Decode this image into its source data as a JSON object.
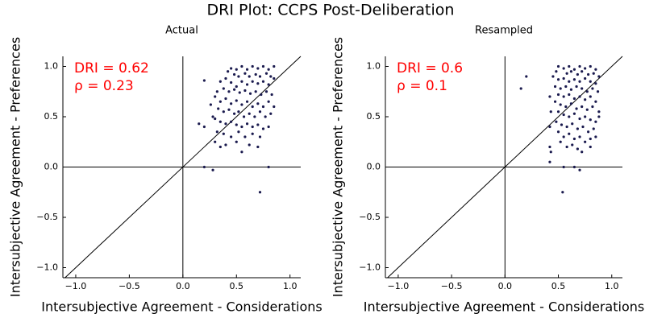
{
  "title": "DRI Plot: CCPS Post-Deliberation",
  "chart_data": [
    {
      "type": "scatter",
      "title": "Actual",
      "xlabel": "Intersubjective Agreement - Considerations",
      "ylabel": "Intersubjective Agreement - Preferences",
      "annotations": [
        "DRI = 0.62",
        "ρ = 0.23"
      ],
      "annotation_color": "#ff0000",
      "color": "#1a1a4e",
      "xlim": [
        -1.12,
        1.1
      ],
      "ylim": [
        -1.1,
        1.1
      ],
      "xticks": [
        {
          "value": -1,
          "label": "−1.0"
        },
        {
          "value": -0.5,
          "label": "−0.5"
        },
        {
          "value": 0,
          "label": "0.0"
        },
        0.5,
        {
          "value": 1,
          "label": "1.0"
        }
      ],
      "yticks": [
        {
          "value": -1,
          "label": "−1.0"
        },
        {
          "value": -0.5,
          "label": "−0.5"
        },
        {
          "value": 0,
          "label": "0.0"
        },
        0.5,
        {
          "value": 1,
          "label": "1.0"
        }
      ],
      "hlines": [
        0
      ],
      "vlines": [
        0
      ],
      "diagonal": true,
      "x": [
        0.45,
        0.5,
        0.55,
        0.6,
        0.65,
        0.7,
        0.75,
        0.8,
        0.85,
        0.42,
        0.48,
        0.52,
        0.58,
        0.62,
        0.68,
        0.72,
        0.78,
        0.82,
        0.85,
        0.4,
        0.35,
        0.45,
        0.55,
        0.6,
        0.65,
        0.7,
        0.75,
        0.8,
        0.5,
        0.38,
        0.43,
        0.48,
        0.53,
        0.58,
        0.63,
        0.68,
        0.73,
        0.78,
        0.83,
        0.3,
        0.35,
        0.4,
        0.45,
        0.5,
        0.55,
        0.6,
        0.65,
        0.7,
        0.75,
        0.8,
        0.85,
        0.33,
        0.38,
        0.43,
        0.48,
        0.52,
        0.57,
        0.62,
        0.67,
        0.72,
        0.77,
        0.82,
        0.3,
        0.35,
        0.4,
        0.45,
        0.5,
        0.55,
        0.6,
        0.65,
        0.7,
        0.75,
        0.8,
        0.32,
        0.38,
        0.45,
        0.52,
        0.58,
        0.65,
        0.72,
        0.3,
        0.4,
        0.5,
        0.62,
        0.7,
        0.55,
        0.35,
        0.28,
        0.32,
        0.26,
        0.2,
        0.15,
        0.2,
        0.2,
        0.28,
        0.8,
        0.72
      ],
      "y": [
        0.98,
        0.97,
        1.0,
        0.97,
        1.0,
        0.98,
        1.0,
        0.97,
        1.0,
        0.95,
        0.92,
        0.9,
        0.93,
        0.9,
        0.92,
        0.9,
        0.93,
        0.9,
        0.88,
        0.88,
        0.85,
        0.84,
        0.85,
        0.82,
        0.85,
        0.83,
        0.85,
        0.82,
        0.8,
        0.78,
        0.75,
        0.77,
        0.74,
        0.76,
        0.73,
        0.75,
        0.72,
        0.75,
        0.72,
        0.7,
        0.65,
        0.68,
        0.63,
        0.66,
        0.62,
        0.65,
        0.6,
        0.63,
        0.6,
        0.65,
        0.6,
        0.58,
        0.55,
        0.57,
        0.53,
        0.55,
        0.5,
        0.53,
        0.5,
        0.55,
        0.5,
        0.53,
        0.48,
        0.45,
        0.43,
        0.45,
        0.42,
        0.4,
        0.43,
        0.4,
        0.42,
        0.38,
        0.4,
        0.35,
        0.33,
        0.3,
        0.35,
        0.3,
        0.33,
        0.3,
        0.25,
        0.22,
        0.25,
        0.22,
        0.2,
        0.15,
        0.2,
        0.5,
        0.75,
        0.62,
        0.86,
        0.43,
        0.4,
        0.0,
        -0.03,
        0.0,
        -0.25
      ]
    },
    {
      "type": "scatter",
      "title": "Resampled",
      "xlabel": "Intersubjective Agreement - Considerations",
      "ylabel": "Intersubjective Agreement - Preferences",
      "annotations": [
        "DRI = 0.6",
        "ρ = 0.1"
      ],
      "annotation_color": "#ff0000",
      "color": "#1a1a4e",
      "xlim": [
        -1.12,
        1.1
      ],
      "ylim": [
        -1.1,
        1.1
      ],
      "xticks": [
        {
          "value": -1,
          "label": "−1.0"
        },
        {
          "value": -0.5,
          "label": "−0.5"
        },
        {
          "value": 0,
          "label": "0.0"
        },
        0.5,
        {
          "value": 1,
          "label": "1.0"
        }
      ],
      "yticks": [
        {
          "value": -1,
          "label": "−1.0"
        },
        {
          "value": -0.5,
          "label": "−0.5"
        },
        {
          "value": 0,
          "label": "0.0"
        },
        0.5,
        {
          "value": 1,
          "label": "1.0"
        }
      ],
      "hlines": [
        0
      ],
      "vlines": [
        0
      ],
      "diagonal": true,
      "x": [
        0.5,
        0.55,
        0.6,
        0.65,
        0.7,
        0.75,
        0.8,
        0.85,
        0.48,
        0.58,
        0.62,
        0.68,
        0.72,
        0.78,
        0.83,
        0.88,
        0.45,
        0.5,
        0.55,
        0.6,
        0.65,
        0.7,
        0.75,
        0.8,
        0.85,
        0.47,
        0.52,
        0.57,
        0.62,
        0.67,
        0.72,
        0.77,
        0.82,
        0.87,
        0.5,
        0.55,
        0.6,
        0.65,
        0.7,
        0.75,
        0.8,
        0.85,
        0.47,
        0.52,
        0.57,
        0.62,
        0.67,
        0.72,
        0.77,
        0.82,
        0.88,
        0.5,
        0.55,
        0.6,
        0.65,
        0.7,
        0.75,
        0.8,
        0.85,
        0.48,
        0.53,
        0.58,
        0.63,
        0.68,
        0.73,
        0.78,
        0.83,
        0.5,
        0.55,
        0.6,
        0.65,
        0.7,
        0.75,
        0.8,
        0.52,
        0.58,
        0.63,
        0.68,
        0.72,
        0.8,
        0.85,
        0.88,
        0.15,
        0.2,
        0.42,
        0.42,
        0.42,
        0.43,
        0.42,
        0.43,
        0.55,
        0.65,
        0.7,
        0.54
      ],
      "y": [
        1.0,
        0.98,
        1.0,
        0.97,
        1.0,
        0.98,
        1.0,
        0.97,
        0.95,
        0.93,
        0.95,
        0.92,
        0.95,
        0.92,
        0.93,
        0.9,
        0.9,
        0.87,
        0.88,
        0.85,
        0.87,
        0.85,
        0.88,
        0.85,
        0.83,
        0.8,
        0.78,
        0.8,
        0.77,
        0.8,
        0.78,
        0.75,
        0.78,
        0.75,
        0.72,
        0.7,
        0.72,
        0.68,
        0.7,
        0.67,
        0.7,
        0.65,
        0.65,
        0.62,
        0.6,
        0.63,
        0.58,
        0.6,
        0.57,
        0.6,
        0.55,
        0.55,
        0.52,
        0.5,
        0.53,
        0.48,
        0.5,
        0.47,
        0.45,
        0.45,
        0.42,
        0.4,
        0.43,
        0.38,
        0.4,
        0.35,
        0.38,
        0.35,
        0.3,
        0.33,
        0.28,
        0.3,
        0.25,
        0.28,
        0.25,
        0.2,
        0.22,
        0.18,
        0.15,
        0.2,
        0.3,
        0.5,
        0.78,
        0.9,
        0.7,
        0.2,
        0.05,
        0.15,
        0.4,
        0.55,
        0.0,
        0.0,
        -0.03,
        -0.25
      ]
    }
  ]
}
